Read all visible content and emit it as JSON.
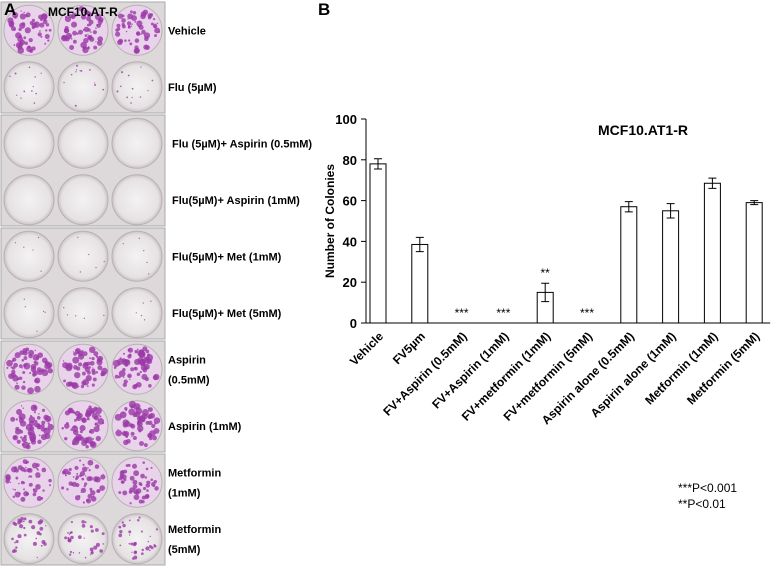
{
  "panel_a": {
    "letter": "A",
    "title": "MCF10.AT-R",
    "labels": [
      [
        "Vehicle"
      ],
      [
        "Flu (5µM)"
      ],
      [
        "Flu (5µM)+ Aspirin (0.5mM)"
      ],
      [
        "Flu(5µM)+ Aspirin (1mM)"
      ],
      [
        "Flu(5µM)+ Met (1mM)"
      ],
      [
        "Flu(5µM)+ Met (5mM)"
      ],
      [
        "Aspirin",
        "(0.5mM)"
      ],
      [
        "Aspirin (1mM)"
      ],
      [
        "Metformin",
        "(1mM)"
      ],
      [
        "Metformin",
        "(5mM)"
      ]
    ]
  },
  "chart_data": {
    "type": "bar",
    "panel_letter": "B",
    "title": "MCF10.AT1-R",
    "y_label": "Number of Colonies",
    "categories": [
      "Vehicle",
      "FV5µm",
      "FV+Aspirin (0.5mM)",
      "FV+Aspirin (1mM)",
      "FV+metformin (1mM)",
      "FV+metformin (5mM)",
      "Aspirin alone (0.5mM)",
      "Aspirin alone (1mM)",
      "Metformin (1mM)",
      "Metformin (5mM)"
    ],
    "values": [
      78,
      38.5,
      0,
      0,
      15,
      0,
      57,
      55,
      68.5,
      59
    ],
    "errors": [
      2.5,
      3.5,
      0,
      0,
      4.5,
      0,
      2.5,
      3.5,
      2.5,
      1
    ],
    "significance": [
      null,
      null,
      "***",
      "***",
      "**",
      "***",
      null,
      null,
      null,
      null
    ],
    "color": "#ffffff",
    "ylim": [
      0,
      100
    ],
    "yticks": [
      0,
      20,
      40,
      60,
      80,
      100
    ],
    "notes": [
      "***P<0.001",
      "**P<0.01"
    ]
  }
}
